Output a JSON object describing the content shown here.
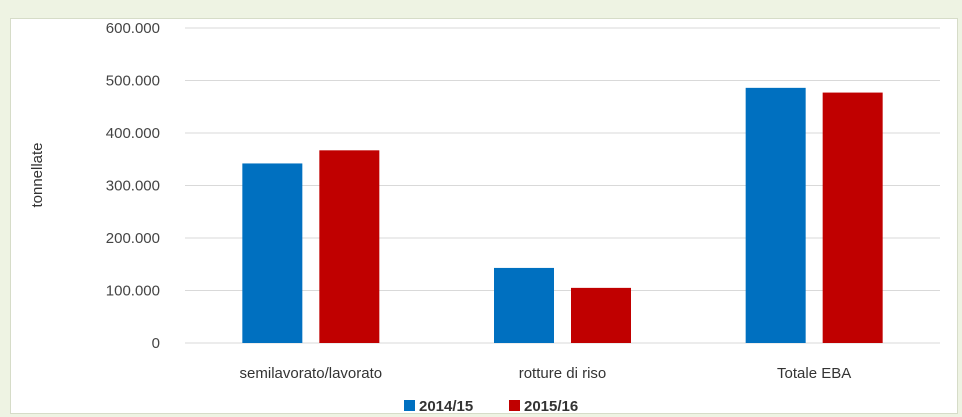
{
  "chart_data": {
    "type": "bar",
    "title": "",
    "xlabel": "",
    "ylabel": "tonnellate",
    "categories": [
      "semilavorato/lavorato",
      "rotture di riso",
      "Totale EBA"
    ],
    "series": [
      {
        "name": "2014/15",
        "values": [
          342000,
          143000,
          486000
        ],
        "color": "#0070c0"
      },
      {
        "name": "2015/16",
        "values": [
          367000,
          105000,
          477000
        ],
        "color": "#c00000"
      }
    ],
    "ylim": [
      0,
      600000
    ],
    "yticks": [
      0,
      100000,
      200000,
      300000,
      400000,
      500000,
      600000
    ],
    "ytick_labels": [
      "0",
      "100.000",
      "200.000",
      "300.000",
      "400.000",
      "500.000",
      "600.000"
    ],
    "grid": true,
    "legend_position": "bottom"
  },
  "colors": {
    "gridline": "#d9d9d9",
    "background": "#eef3e3"
  }
}
